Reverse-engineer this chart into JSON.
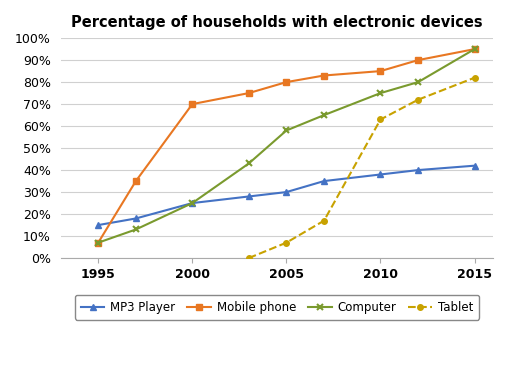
{
  "title": "Percentage of households with electronic devices",
  "years": [
    1995,
    1997,
    2000,
    2003,
    2005,
    2007,
    2010,
    2012,
    2015
  ],
  "mp3": [
    15,
    18,
    25,
    28,
    30,
    35,
    38,
    40,
    42
  ],
  "mobile": [
    7,
    35,
    70,
    75,
    80,
    83,
    85,
    90,
    95
  ],
  "computer": [
    7,
    13,
    25,
    43,
    58,
    65,
    75,
    80,
    95
  ],
  "tablet": [
    null,
    null,
    null,
    0,
    7,
    17,
    63,
    72,
    82
  ],
  "mp3_color": "#4472c4",
  "mobile_color": "#e87722",
  "computer_color": "#7a9a2e",
  "tablet_color": "#c8a200",
  "ylim": [
    0,
    100
  ],
  "xlim": [
    1993,
    2016
  ],
  "ytick_labels": [
    "0%",
    "10%",
    "20%",
    "30%",
    "40%",
    "50%",
    "60%",
    "70%",
    "80%",
    "90%",
    "100%"
  ],
  "ytick_vals": [
    0,
    10,
    20,
    30,
    40,
    50,
    60,
    70,
    80,
    90,
    100
  ],
  "xtick_vals": [
    1995,
    2000,
    2005,
    2010,
    2015
  ],
  "legend_labels": [
    "MP3 Player",
    "Mobile phone",
    "Computer",
    "Tablet"
  ],
  "background_color": "#ffffff",
  "grid_color": "#d0d0d0",
  "title_fontsize": 10.5,
  "axis_fontsize": 9,
  "legend_fontsize": 8.5
}
